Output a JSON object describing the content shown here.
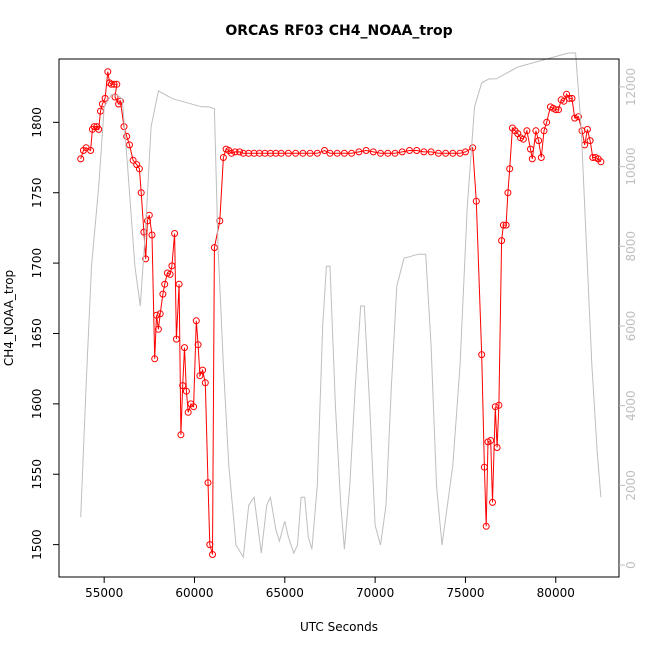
{
  "chart_data": {
    "type": "line",
    "title": "ORCAS RF03 CH4_NOAA_trop",
    "xlabel": "UTC Seconds",
    "ylabel": "CH4_NOAA_trop",
    "xlim": [
      52500,
      83500
    ],
    "ylim": [
      1477,
      1845
    ],
    "y2lim": [
      -300,
      12700
    ],
    "xticks": [
      "55000",
      "60000",
      "65000",
      "70000",
      "75000",
      "80000"
    ],
    "yticks": [
      "1500",
      "1550",
      "1600",
      "1650",
      "1700",
      "1750",
      "1800"
    ],
    "y2ticks": [
      "0",
      "2000",
      "4000",
      "6000",
      "8000",
      "10000",
      "12000"
    ],
    "colors": {
      "ch4": "#ff0000",
      "altitude": "#bebebe",
      "axis": "#000000",
      "y2axis": "#bebebe"
    },
    "series": [
      {
        "color": "#ff0000",
        "marker": "open-circle",
        "axis": "left",
        "points": [
          [
            53700,
            1774
          ],
          [
            53850,
            1780
          ],
          [
            54000,
            1782
          ],
          [
            54250,
            1780
          ],
          [
            54350,
            1795
          ],
          [
            54450,
            1797
          ],
          [
            54600,
            1797
          ],
          [
            54700,
            1795
          ],
          [
            54800,
            1808
          ],
          [
            54900,
            1813
          ],
          [
            55050,
            1817
          ],
          [
            55200,
            1836
          ],
          [
            55300,
            1828
          ],
          [
            55400,
            1827
          ],
          [
            55550,
            1827
          ],
          [
            55700,
            1827
          ],
          [
            55600,
            1818
          ],
          [
            55800,
            1813
          ],
          [
            55900,
            1815
          ],
          [
            56100,
            1797
          ],
          [
            56250,
            1790
          ],
          [
            56400,
            1784
          ],
          [
            56600,
            1773
          ],
          [
            56800,
            1770
          ],
          [
            56950,
            1767
          ],
          [
            57050,
            1750
          ],
          [
            57200,
            1722
          ],
          [
            57300,
            1703
          ],
          [
            57400,
            1730
          ],
          [
            57500,
            1734
          ],
          [
            57650,
            1720
          ],
          [
            57800,
            1632
          ],
          [
            57900,
            1663
          ],
          [
            58000,
            1653
          ],
          [
            58100,
            1664
          ],
          [
            58250,
            1678
          ],
          [
            58350,
            1685
          ],
          [
            58500,
            1693
          ],
          [
            58650,
            1692
          ],
          [
            58750,
            1698
          ],
          [
            58900,
            1721
          ],
          [
            59000,
            1646
          ],
          [
            59150,
            1685
          ],
          [
            59250,
            1578
          ],
          [
            59350,
            1613
          ],
          [
            59450,
            1640
          ],
          [
            59550,
            1609
          ],
          [
            59650,
            1594
          ],
          [
            59800,
            1600
          ],
          [
            59950,
            1598
          ],
          [
            60100,
            1659
          ],
          [
            60200,
            1642
          ],
          [
            60300,
            1620
          ],
          [
            60450,
            1624
          ],
          [
            60600,
            1615
          ],
          [
            60750,
            1544
          ],
          [
            60850,
            1500
          ],
          [
            61000,
            1493
          ],
          [
            61100,
            1711
          ],
          [
            61400,
            1730
          ],
          [
            61600,
            1775
          ],
          [
            61750,
            1781
          ],
          [
            61900,
            1780
          ],
          [
            62050,
            1778
          ],
          [
            62250,
            1779
          ],
          [
            62500,
            1779
          ],
          [
            62700,
            1778
          ],
          [
            63000,
            1778
          ],
          [
            63300,
            1778
          ],
          [
            63600,
            1778
          ],
          [
            63900,
            1778
          ],
          [
            64200,
            1778
          ],
          [
            64500,
            1778
          ],
          [
            64800,
            1778
          ],
          [
            65200,
            1778
          ],
          [
            65600,
            1778
          ],
          [
            66000,
            1778
          ],
          [
            66400,
            1778
          ],
          [
            66800,
            1778
          ],
          [
            67200,
            1780
          ],
          [
            67500,
            1778
          ],
          [
            67900,
            1778
          ],
          [
            68300,
            1778
          ],
          [
            68700,
            1778
          ],
          [
            69100,
            1779
          ],
          [
            69500,
            1780
          ],
          [
            69900,
            1779
          ],
          [
            70300,
            1778
          ],
          [
            70700,
            1778
          ],
          [
            71100,
            1778
          ],
          [
            71500,
            1779
          ],
          [
            71900,
            1780
          ],
          [
            72300,
            1780
          ],
          [
            72700,
            1779
          ],
          [
            73100,
            1779
          ],
          [
            73500,
            1778
          ],
          [
            73900,
            1778
          ],
          [
            74300,
            1778
          ],
          [
            74700,
            1778
          ],
          [
            75000,
            1779
          ],
          [
            75400,
            1782
          ],
          [
            75600,
            1744
          ],
          [
            75900,
            1635
          ],
          [
            76050,
            1555
          ],
          [
            76150,
            1513
          ],
          [
            76250,
            1573
          ],
          [
            76400,
            1574
          ],
          [
            76500,
            1530
          ],
          [
            76650,
            1598
          ],
          [
            76750,
            1569
          ],
          [
            76850,
            1599
          ],
          [
            77000,
            1716
          ],
          [
            77100,
            1727
          ],
          [
            77250,
            1727
          ],
          [
            77350,
            1750
          ],
          [
            77450,
            1767
          ],
          [
            77600,
            1796
          ],
          [
            77750,
            1794
          ],
          [
            77900,
            1792
          ],
          [
            78050,
            1789
          ],
          [
            78200,
            1788
          ],
          [
            78400,
            1794
          ],
          [
            78600,
            1781
          ],
          [
            78700,
            1774
          ],
          [
            78900,
            1794
          ],
          [
            79050,
            1787
          ],
          [
            79200,
            1775
          ],
          [
            79350,
            1794
          ],
          [
            79500,
            1800
          ],
          [
            79700,
            1811
          ],
          [
            79850,
            1810
          ],
          [
            80000,
            1809
          ],
          [
            80150,
            1809
          ],
          [
            80300,
            1816
          ],
          [
            80450,
            1815
          ],
          [
            80600,
            1820
          ],
          [
            80750,
            1817
          ],
          [
            80900,
            1817
          ],
          [
            81050,
            1803
          ],
          [
            81250,
            1804
          ],
          [
            81450,
            1794
          ],
          [
            81600,
            1784
          ],
          [
            81750,
            1795
          ],
          [
            81900,
            1787
          ],
          [
            82050,
            1775
          ],
          [
            82200,
            1775
          ],
          [
            82350,
            1774
          ],
          [
            82500,
            1772
          ]
        ]
      },
      {
        "color": "#bebebe",
        "axis": "right",
        "points": [
          [
            53700,
            1200
          ],
          [
            54000,
            4500
          ],
          [
            54300,
            7500
          ],
          [
            54700,
            9500
          ],
          [
            55000,
            11500
          ],
          [
            55400,
            11800
          ],
          [
            55700,
            11800
          ],
          [
            56000,
            11700
          ],
          [
            56300,
            10000
          ],
          [
            56700,
            7500
          ],
          [
            57000,
            6500
          ],
          [
            57300,
            8500
          ],
          [
            57600,
            11000
          ],
          [
            58000,
            11900
          ],
          [
            58400,
            11800
          ],
          [
            58800,
            11700
          ],
          [
            59200,
            11650
          ],
          [
            59600,
            11600
          ],
          [
            60000,
            11550
          ],
          [
            60400,
            11500
          ],
          [
            60800,
            11500
          ],
          [
            61100,
            11450
          ],
          [
            61300,
            8000
          ],
          [
            61600,
            5000
          ],
          [
            61900,
            2500
          ],
          [
            62300,
            500
          ],
          [
            62700,
            200
          ],
          [
            63000,
            1500
          ],
          [
            63300,
            1700
          ],
          [
            63500,
            1000
          ],
          [
            63700,
            300
          ],
          [
            64000,
            1500
          ],
          [
            64200,
            1700
          ],
          [
            64500,
            900
          ],
          [
            64700,
            600
          ],
          [
            65000,
            1100
          ],
          [
            65200,
            700
          ],
          [
            65500,
            300
          ],
          [
            65700,
            500
          ],
          [
            65900,
            1700
          ],
          [
            66100,
            1700
          ],
          [
            66300,
            700
          ],
          [
            66500,
            400
          ],
          [
            66800,
            2000
          ],
          [
            67100,
            6000
          ],
          [
            67300,
            7500
          ],
          [
            67500,
            7500
          ],
          [
            67800,
            4000
          ],
          [
            68100,
            1500
          ],
          [
            68300,
            400
          ],
          [
            68600,
            2000
          ],
          [
            68900,
            4500
          ],
          [
            69200,
            6500
          ],
          [
            69400,
            6500
          ],
          [
            69700,
            4000
          ],
          [
            70000,
            1000
          ],
          [
            70300,
            500
          ],
          [
            70600,
            1500
          ],
          [
            70900,
            4500
          ],
          [
            71200,
            7000
          ],
          [
            71600,
            7700
          ],
          [
            72000,
            7750
          ],
          [
            72400,
            7800
          ],
          [
            72800,
            7800
          ],
          [
            73100,
            5500
          ],
          [
            73400,
            2000
          ],
          [
            73700,
            500
          ],
          [
            74000,
            1500
          ],
          [
            74300,
            2500
          ],
          [
            74700,
            5000
          ],
          [
            75100,
            9000
          ],
          [
            75500,
            11500
          ],
          [
            75900,
            12100
          ],
          [
            76300,
            12200
          ],
          [
            76700,
            12200
          ],
          [
            77100,
            12300
          ],
          [
            77500,
            12400
          ],
          [
            77900,
            12500
          ],
          [
            78300,
            12550
          ],
          [
            78700,
            12600
          ],
          [
            79100,
            12650
          ],
          [
            79500,
            12700
          ],
          [
            79900,
            12750
          ],
          [
            80300,
            12800
          ],
          [
            80700,
            12850
          ],
          [
            81100,
            12850
          ],
          [
            81400,
            11000
          ],
          [
            81700,
            8000
          ],
          [
            82000,
            5000
          ],
          [
            82300,
            2800
          ],
          [
            82500,
            1700
          ]
        ]
      }
    ]
  }
}
